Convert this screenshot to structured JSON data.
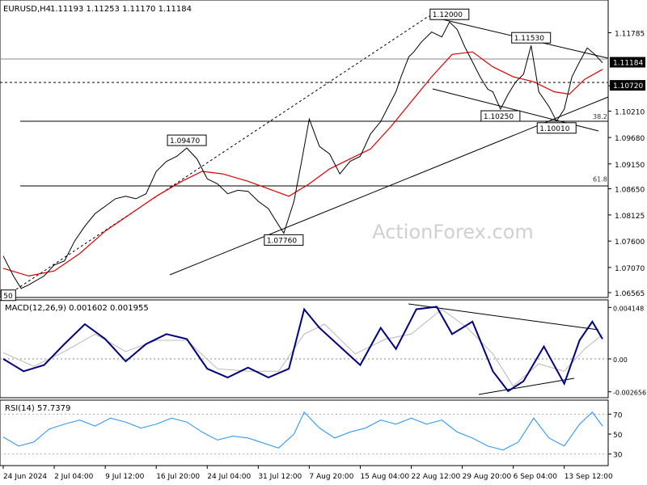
{
  "header": {
    "symbol_label": "EURUSD,H4",
    "ohlc_label": "1.11193 1.11253 1.11170 1.11184"
  },
  "watermark": "ActionForex.com",
  "colors": {
    "price_line": "#000000",
    "ma_line": "#e00000",
    "macd_line": "#000080",
    "signal_line": "#b8b8b8",
    "rsi_line": "#1e90ff",
    "label_bg": "#ffffff",
    "current_price_bg": "#000000"
  },
  "chart_data": [
    {
      "type": "line",
      "panel": "price",
      "title": "EURUSD,H4 1.11193 1.11253 1.11170 1.11184",
      "x": [
        "24 Jun 2024",
        "2 Jul 04:00",
        "9 Jul 12:00",
        "16 Jul 20:00",
        "24 Jul 04:00",
        "31 Jul 12:00",
        "7 Aug 20:00",
        "15 Aug 04:00",
        "22 Aug 12:00",
        "29 Aug 20:00",
        "6 Sep 04:00",
        "13 Sep 12:00"
      ],
      "ylim": [
        1.065,
        1.1215
      ],
      "y_ticks": [
        "1.11785",
        "1.10720",
        "1.10210",
        "1.09680",
        "1.09150",
        "1.08650",
        "1.08125",
        "1.07600",
        "1.07070",
        "1.06565"
      ],
      "series": [
        {
          "values": [
            [
              0,
              1.073
            ],
            [
              0.2,
              1.069
            ],
            [
              0.35,
              1.0665
            ],
            [
              0.5,
              1.0672
            ],
            [
              0.8,
              1.069
            ],
            [
              1.0,
              1.0712
            ],
            [
              1.2,
              1.072
            ],
            [
              1.4,
              1.076
            ],
            [
              1.6,
              1.079
            ],
            [
              1.8,
              1.0815
            ],
            [
              2.0,
              1.083
            ],
            [
              2.2,
              1.0845
            ],
            [
              2.4,
              1.085
            ],
            [
              2.6,
              1.0845
            ],
            [
              2.8,
              1.0855
            ],
            [
              3.0,
              1.09
            ],
            [
              3.2,
              1.092
            ],
            [
              3.4,
              1.093
            ],
            [
              3.6,
              1.0947
            ],
            [
              3.8,
              1.0925
            ],
            [
              4.0,
              1.0885
            ],
            [
              4.2,
              1.0875
            ],
            [
              4.4,
              1.0855
            ],
            [
              4.6,
              1.0862
            ],
            [
              4.8,
              1.086
            ],
            [
              5.0,
              1.084
            ],
            [
              5.2,
              1.0825
            ],
            [
              5.35,
              1.08
            ],
            [
              5.5,
              1.0776
            ],
            [
              5.7,
              1.084
            ],
            [
              5.85,
              1.092
            ],
            [
              6.0,
              1.1005
            ],
            [
              6.2,
              1.095
            ],
            [
              6.4,
              1.0935
            ],
            [
              6.6,
              1.0895
            ],
            [
              6.8,
              1.092
            ],
            [
              7.0,
              1.093
            ],
            [
              7.2,
              1.0975
            ],
            [
              7.4,
              1.1
            ],
            [
              7.55,
              1.103
            ],
            [
              7.7,
              1.106
            ],
            [
              7.8,
              1.109
            ],
            [
              7.95,
              1.113
            ],
            [
              8.05,
              1.114
            ],
            [
              8.2,
              1.116
            ],
            [
              8.4,
              1.118
            ],
            [
              8.6,
              1.117
            ],
            [
              8.75,
              1.12
            ],
            [
              8.9,
              1.1185
            ],
            [
              9.05,
              1.115
            ],
            [
              9.2,
              1.112
            ],
            [
              9.35,
              1.109
            ],
            [
              9.5,
              1.1065
            ],
            [
              9.6,
              1.106
            ],
            [
              9.75,
              1.1025
            ],
            [
              9.9,
              1.1055
            ],
            [
              10.05,
              1.108
            ],
            [
              10.2,
              1.1095
            ],
            [
              10.35,
              1.1153
            ],
            [
              10.5,
              1.106
            ],
            [
              10.7,
              1.103
            ],
            [
              10.85,
              1.1001
            ],
            [
              11.0,
              1.1025
            ],
            [
              11.15,
              1.109
            ],
            [
              11.3,
              1.112
            ],
            [
              11.45,
              1.1148
            ],
            [
              11.6,
              1.1135
            ],
            [
              11.75,
              1.1118
            ]
          ]
        },
        {
          "values": [
            [
              0,
              1.0705
            ],
            [
              0.5,
              1.069
            ],
            [
              1.0,
              1.07
            ],
            [
              1.5,
              1.0735
            ],
            [
              2.0,
              1.078
            ],
            [
              2.5,
              1.0815
            ],
            [
              3.0,
              1.085
            ],
            [
              3.5,
              1.088
            ],
            [
              3.9,
              1.09
            ],
            [
              4.3,
              1.0895
            ],
            [
              4.8,
              1.088
            ],
            [
              5.2,
              1.0865
            ],
            [
              5.6,
              1.085
            ],
            [
              6.0,
              1.0875
            ],
            [
              6.4,
              1.0905
            ],
            [
              6.8,
              1.0925
            ],
            [
              7.2,
              1.0945
            ],
            [
              7.6,
              1.099
            ],
            [
              8.0,
              1.104
            ],
            [
              8.4,
              1.109
            ],
            [
              8.8,
              1.1135
            ],
            [
              9.2,
              1.114
            ],
            [
              9.6,
              1.111
            ],
            [
              10.0,
              1.109
            ],
            [
              10.4,
              1.108
            ],
            [
              10.8,
              1.106
            ],
            [
              11.1,
              1.1055
            ],
            [
              11.4,
              1.1085
            ],
            [
              11.75,
              1.1105
            ]
          ]
        }
      ],
      "annotations": [
        {
          "text": "1.12000",
          "x": 8.75,
          "y": 1.12
        },
        {
          "text": "1.11530",
          "x": 10.35,
          "y": 1.1153
        },
        {
          "text": "1.09470",
          "x": 3.6,
          "y": 1.0947
        },
        {
          "text": "1.10250",
          "x": 9.75,
          "y": 1.1025
        },
        {
          "text": "1.10010",
          "x": 10.85,
          "y": 1.1001
        },
        {
          "text": "1.07760",
          "x": 5.5,
          "y": 1.0776
        },
        {
          "text": "50",
          "x": 0.1,
          "y": 1.0665
        },
        {
          "text": "1.11184",
          "current": true,
          "y": 1.11184
        },
        {
          "text": "1.10720",
          "y": 1.1072
        }
      ],
      "fib_levels": [
        {
          "label": "38.2",
          "y": 1.1001
        },
        {
          "label": "61.8",
          "y": 1.0875
        }
      ]
    },
    {
      "type": "line",
      "panel": "macd",
      "title": "MACD(12,26,9) 0.001602 0.001955",
      "ylim": [
        -0.003,
        0.0043
      ],
      "y_ticks": [
        "0.004148",
        "0.00",
        "-0.002656"
      ],
      "series": [
        {
          "values": [
            [
              0,
              0.0
            ],
            [
              0.4,
              -0.001
            ],
            [
              0.8,
              -0.0005
            ],
            [
              1.2,
              0.0012
            ],
            [
              1.6,
              0.0028
            ],
            [
              2.0,
              0.0016
            ],
            [
              2.4,
              -0.0002
            ],
            [
              2.8,
              0.0012
            ],
            [
              3.2,
              0.002
            ],
            [
              3.6,
              0.0016
            ],
            [
              4.0,
              -0.0008
            ],
            [
              4.4,
              -0.0015
            ],
            [
              4.8,
              -0.0007
            ],
            [
              5.2,
              -0.0015
            ],
            [
              5.6,
              -0.0008
            ],
            [
              5.9,
              0.004
            ],
            [
              6.2,
              0.0025
            ],
            [
              6.6,
              0.001
            ],
            [
              7.0,
              -0.0005
            ],
            [
              7.4,
              0.0025
            ],
            [
              7.7,
              0.0008
            ],
            [
              8.1,
              0.004
            ],
            [
              8.5,
              0.0042
            ],
            [
              8.8,
              0.002
            ],
            [
              9.2,
              0.003
            ],
            [
              9.6,
              -0.001
            ],
            [
              9.9,
              -0.0026
            ],
            [
              10.2,
              -0.0018
            ],
            [
              10.6,
              0.001
            ],
            [
              11.0,
              -0.002
            ],
            [
              11.3,
              0.0015
            ],
            [
              11.55,
              0.003
            ],
            [
              11.75,
              0.0016
            ]
          ]
        },
        {
          "values": [
            [
              0,
              0.0005
            ],
            [
              0.6,
              -0.0006
            ],
            [
              1.2,
              0.0006
            ],
            [
              1.8,
              0.002
            ],
            [
              2.4,
              0.0006
            ],
            [
              3.0,
              0.0015
            ],
            [
              3.6,
              0.0015
            ],
            [
              4.2,
              -0.0008
            ],
            [
              4.8,
              -0.001
            ],
            [
              5.4,
              -0.001
            ],
            [
              5.9,
              0.002
            ],
            [
              6.3,
              0.0028
            ],
            [
              6.9,
              0.0004
            ],
            [
              7.5,
              0.0016
            ],
            [
              8.0,
              0.002
            ],
            [
              8.6,
              0.004
            ],
            [
              9.1,
              0.0025
            ],
            [
              9.6,
              0.0004
            ],
            [
              10.0,
              -0.0022
            ],
            [
              10.5,
              -0.0004
            ],
            [
              11.0,
              -0.001
            ],
            [
              11.4,
              0.0008
            ],
            [
              11.75,
              0.00196
            ]
          ]
        }
      ]
    },
    {
      "type": "line",
      "panel": "rsi",
      "title": "RSI(14) 57.7379",
      "ylim": [
        20,
        80
      ],
      "y_ticks": [
        "70",
        "50",
        "30"
      ],
      "series": [
        {
          "values": [
            [
              0,
              47
            ],
            [
              0.3,
              38
            ],
            [
              0.6,
              42
            ],
            [
              0.9,
              55
            ],
            [
              1.2,
              60
            ],
            [
              1.5,
              64
            ],
            [
              1.8,
              58
            ],
            [
              2.1,
              66
            ],
            [
              2.4,
              62
            ],
            [
              2.7,
              56
            ],
            [
              3.0,
              60
            ],
            [
              3.3,
              66
            ],
            [
              3.6,
              62
            ],
            [
              3.9,
              52
            ],
            [
              4.2,
              44
            ],
            [
              4.5,
              48
            ],
            [
              4.8,
              46
            ],
            [
              5.1,
              41
            ],
            [
              5.4,
              36
            ],
            [
              5.7,
              50
            ],
            [
              5.9,
              72
            ],
            [
              6.2,
              56
            ],
            [
              6.5,
              46
            ],
            [
              6.8,
              52
            ],
            [
              7.1,
              56
            ],
            [
              7.4,
              64
            ],
            [
              7.7,
              60
            ],
            [
              8.0,
              66
            ],
            [
              8.3,
              60
            ],
            [
              8.6,
              64
            ],
            [
              8.9,
              52
            ],
            [
              9.2,
              46
            ],
            [
              9.5,
              38
            ],
            [
              9.8,
              34
            ],
            [
              10.1,
              42
            ],
            [
              10.4,
              66
            ],
            [
              10.7,
              46
            ],
            [
              11.0,
              38
            ],
            [
              11.3,
              60
            ],
            [
              11.55,
              72
            ],
            [
              11.75,
              58
            ]
          ]
        }
      ]
    }
  ],
  "macd_label": "MACD(12,26,9) 0.001602 0.001955",
  "rsi_label": "RSI(14) 57.7379"
}
